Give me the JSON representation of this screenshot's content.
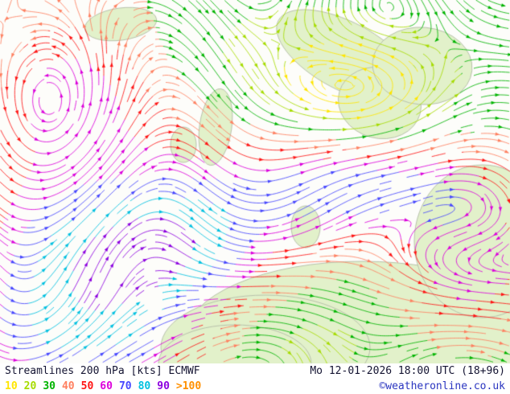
{
  "footer": {
    "product": "Streamlines 200 hPa [kts] ECMWF",
    "datetime": "Mo 12-01-2026 18:00 UTC (18+96)",
    "copyright": "©weatheronline.co.uk",
    "text_color": "#141432",
    "copyright_color": "#2a35c0",
    "legend": {
      "items": [
        {
          "label": "10",
          "color": "#ffe600"
        },
        {
          "label": "20",
          "color": "#a6dc00"
        },
        {
          "label": "30",
          "color": "#00b400"
        },
        {
          "label": "40",
          "color": "#ff8060"
        },
        {
          "label": "50",
          "color": "#ff1414"
        },
        {
          "label": "60",
          "color": "#dc00dc"
        },
        {
          "label": "70",
          "color": "#4646ff"
        },
        {
          "label": "80",
          "color": "#00c0e0"
        },
        {
          "label": "90",
          "color": "#8c00e0"
        },
        {
          "label": ">100",
          "color": "#ff9000"
        }
      ]
    }
  },
  "map": {
    "sea_color": "#fdfdfa",
    "land_color": "#e2f1ca",
    "coast_color": "#b9c2ac",
    "speed_thresholds": [
      15,
      25,
      35,
      45,
      55,
      65,
      75,
      85,
      95
    ]
  }
}
